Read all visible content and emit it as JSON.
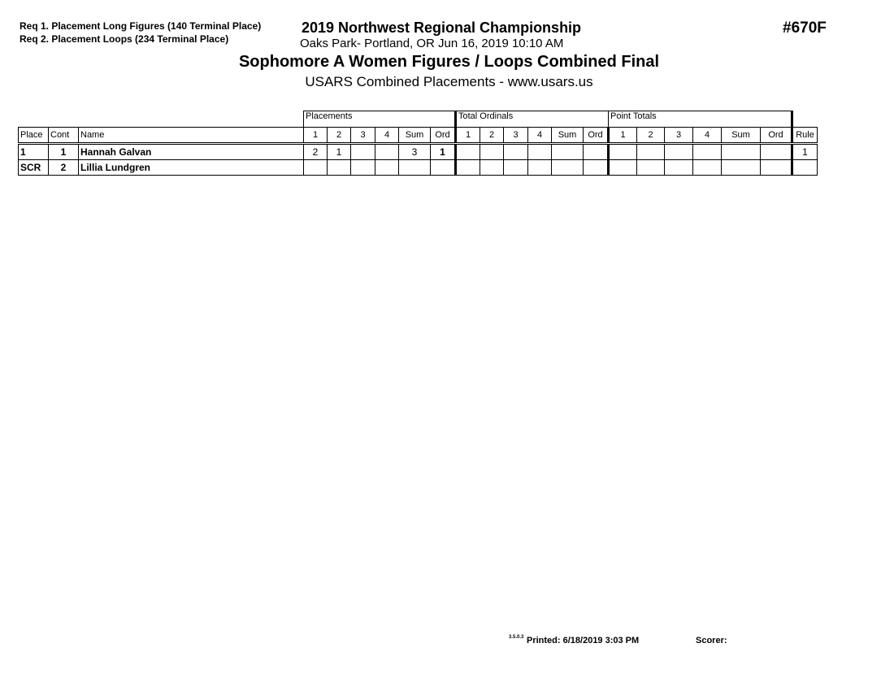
{
  "requirements": [
    "Req  1.  Placement Long Figures (140 Terminal Place)",
    "Req  2.  Placement Loops (234 Terminal Place)"
  ],
  "event_title": "2019 Northwest Regional Championship",
  "location_line": "Oaks Park- Portland, OR  Jun 16, 2019  10:10 AM",
  "event_number": "#670F",
  "contest_title": "Sophomore A Women Figures / Loops Combined Final",
  "subtitle": "USARS Combined Placements - www.usars.us",
  "table": {
    "groups": [
      "Placements",
      "Total Ordinals",
      "Point Totals"
    ],
    "headers": [
      "Place",
      "Cont",
      "Name",
      "1",
      "2",
      "3",
      "4",
      "Sum",
      "Ord",
      "1",
      "2",
      "3",
      "4",
      "Sum",
      "Ord",
      "1",
      "2",
      "3",
      "4",
      "Sum",
      "Ord",
      "Rule"
    ],
    "rows": [
      [
        "1",
        "1",
        "Hannah Galvan",
        "2",
        "1",
        "",
        "",
        "3",
        "1",
        "",
        "",
        "",
        "",
        "",
        "",
        "",
        "",
        "",
        "",
        "",
        "",
        "1"
      ],
      [
        "SCR",
        "2",
        "Lillia Lundgren",
        "",
        "",
        "",
        "",
        "",
        "",
        "",
        "",
        "",
        "",
        "",
        "",
        "",
        "",
        "",
        "",
        "",
        "",
        ""
      ]
    ]
  },
  "footer": {
    "version": "3.5.0.3",
    "printed": "Printed: 6/18/2019 3:03 PM",
    "scorer": "Scorer:"
  }
}
